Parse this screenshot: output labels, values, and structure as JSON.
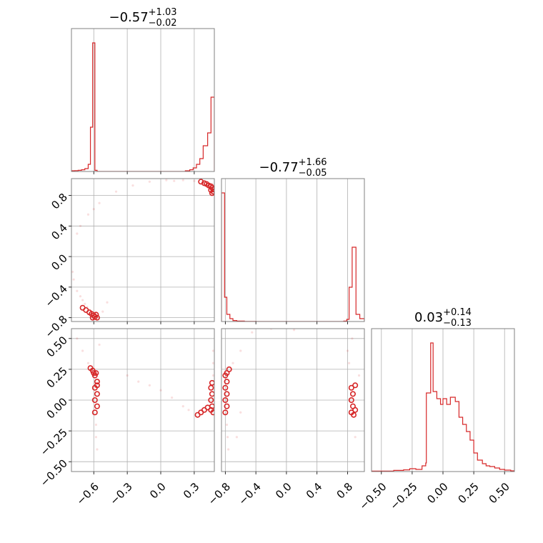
{
  "style": {
    "series_color": "#d62728",
    "grid_color": "#b0b0b0",
    "frame_color": "#808080"
  },
  "chart_data": {
    "type": "corner",
    "grid": true,
    "panels": [
      {
        "id": "hist-0",
        "type": "histogram",
        "row": 0,
        "col": 0,
        "title": {
          "median": "−0.57",
          "plus": "+1.03",
          "minus": "−0.02"
        },
        "xlim": [
          -0.8,
          0.48
        ],
        "x_gridlines": [
          -0.6,
          -0.3,
          0.0,
          0.3
        ],
        "ylim": [
          0,
          100
        ],
        "bins": [
          [
            -0.8,
            0.5
          ],
          [
            -0.77,
            0.6
          ],
          [
            -0.74,
            0.8
          ],
          [
            -0.71,
            1.2
          ],
          [
            -0.68,
            2.0
          ],
          [
            -0.65,
            5.0
          ],
          [
            -0.63,
            31.0
          ],
          [
            -0.61,
            90.0
          ],
          [
            -0.59,
            0.8
          ],
          [
            -0.57,
            0.0
          ],
          [
            0.22,
            0.5
          ],
          [
            0.26,
            1.2
          ],
          [
            0.29,
            2.5
          ],
          [
            0.32,
            5.0
          ],
          [
            0.35,
            9.0
          ],
          [
            0.38,
            18.0
          ],
          [
            0.42,
            27.0
          ],
          [
            0.45,
            52.0
          ],
          [
            0.48,
            52.0
          ]
        ]
      },
      {
        "id": "scatter-1-0",
        "type": "scatter_contour",
        "row": 1,
        "col": 0,
        "xlim": [
          -0.8,
          0.48
        ],
        "ylim": [
          -0.85,
          1.02
        ],
        "x_gridlines": [
          -0.6,
          -0.3,
          0.0,
          0.3
        ],
        "y_ticks": [
          {
            "value": -0.8,
            "label": "−0.8"
          },
          {
            "value": -0.4,
            "label": "−0.4"
          },
          {
            "value": 0.0,
            "label": "0.0"
          },
          {
            "value": 0.4,
            "label": "0.4"
          },
          {
            "value": 0.8,
            "label": "0.8"
          }
        ],
        "dense_points": [
          [
            0.36,
            0.98
          ],
          [
            0.39,
            0.96
          ],
          [
            0.41,
            0.95
          ],
          [
            0.43,
            0.93
          ],
          [
            0.45,
            0.92
          ],
          [
            0.46,
            0.9
          ],
          [
            0.47,
            0.88
          ],
          [
            0.45,
            0.87
          ],
          [
            0.47,
            0.85
          ],
          [
            0.46,
            0.83
          ],
          [
            -0.58,
            -0.76
          ],
          [
            -0.6,
            -0.77
          ],
          [
            -0.62,
            -0.75
          ],
          [
            -0.59,
            -0.79
          ],
          [
            -0.57,
            -0.8
          ],
          [
            -0.61,
            -0.8
          ],
          [
            -0.64,
            -0.73
          ],
          [
            -0.67,
            -0.7
          ],
          [
            -0.7,
            -0.67
          ]
        ],
        "sparse_points": [
          [
            -0.75,
            -0.45
          ],
          [
            -0.72,
            -0.52
          ],
          [
            -0.7,
            -0.57
          ],
          [
            -0.68,
            -0.62
          ],
          [
            -0.66,
            -0.66
          ],
          [
            -0.78,
            -0.3
          ],
          [
            -0.79,
            -0.2
          ],
          [
            -0.65,
            0.55
          ],
          [
            -0.6,
            0.62
          ],
          [
            -0.55,
            0.7
          ],
          [
            -0.4,
            0.85
          ],
          [
            -0.25,
            0.93
          ],
          [
            -0.1,
            0.98
          ],
          [
            0.05,
            1.0
          ],
          [
            0.2,
            1.0
          ],
          [
            -0.48,
            -0.6
          ],
          [
            -0.52,
            -0.72
          ],
          [
            -0.75,
            0.3
          ],
          [
            -0.72,
            0.4
          ],
          [
            0.12,
            0.99
          ],
          [
            0.3,
            0.99
          ]
        ]
      },
      {
        "id": "hist-1",
        "type": "histogram",
        "row": 1,
        "col": 1,
        "title": {
          "median": "−0.77",
          "plus": "+1.66",
          "minus": "−0.05"
        },
        "xlim": [
          -0.85,
          1.02
        ],
        "x_gridlines": [
          -0.8,
          -0.4,
          0.0,
          0.4,
          0.8
        ],
        "ylim": [
          0,
          100
        ],
        "bins": [
          [
            -0.85,
            90.0
          ],
          [
            -0.81,
            17.0
          ],
          [
            -0.78,
            5.0
          ],
          [
            -0.74,
            2.0
          ],
          [
            -0.7,
            0.7
          ],
          [
            -0.65,
            0.3
          ],
          [
            -0.55,
            0.1
          ],
          [
            -0.4,
            0.0
          ],
          [
            0.75,
            0.3
          ],
          [
            0.79,
            1.5
          ],
          [
            0.82,
            24.0
          ],
          [
            0.86,
            52.0
          ],
          [
            0.91,
            5.0
          ],
          [
            0.96,
            2.0
          ],
          [
            1.0,
            2.0
          ]
        ]
      },
      {
        "id": "scatter-2-0",
        "type": "scatter_contour",
        "row": 2,
        "col": 0,
        "xlim": [
          -0.8,
          0.48
        ],
        "ylim": [
          -0.58,
          0.58
        ],
        "x_ticks": [
          {
            "value": -0.6,
            "label": "−0.6"
          },
          {
            "value": -0.3,
            "label": "−0.3"
          },
          {
            "value": 0.0,
            "label": "0.0"
          },
          {
            "value": 0.3,
            "label": "0.3"
          }
        ],
        "y_ticks": [
          {
            "value": -0.5,
            "label": "−0.50"
          },
          {
            "value": -0.25,
            "label": "−0.25"
          },
          {
            "value": 0.0,
            "label": "0.00"
          },
          {
            "value": 0.25,
            "label": "0.25"
          },
          {
            "value": 0.5,
            "label": "0.50"
          }
        ],
        "dense_points": [
          [
            -0.59,
            0.2
          ],
          [
            -0.57,
            0.15
          ],
          [
            -0.59,
            0.1
          ],
          [
            -0.57,
            0.05
          ],
          [
            -0.59,
            0.0
          ],
          [
            -0.57,
            -0.05
          ],
          [
            -0.59,
            -0.1
          ],
          [
            -0.57,
            0.12
          ],
          [
            -0.58,
            0.22
          ],
          [
            -0.6,
            0.22
          ],
          [
            -0.61,
            0.24
          ],
          [
            -0.63,
            0.26
          ],
          [
            0.33,
            -0.12
          ],
          [
            0.36,
            -0.1
          ],
          [
            0.39,
            -0.08
          ],
          [
            0.42,
            -0.06
          ],
          [
            0.45,
            -0.08
          ],
          [
            0.46,
            -0.05
          ],
          [
            0.45,
            0.0
          ],
          [
            0.46,
            0.05
          ],
          [
            0.45,
            0.1
          ],
          [
            0.46,
            0.14
          ],
          [
            0.47,
            -0.1
          ]
        ],
        "sparse_points": [
          [
            -0.58,
            -0.2
          ],
          [
            -0.58,
            -0.3
          ],
          [
            -0.57,
            -0.4
          ],
          [
            -0.7,
            0.4
          ],
          [
            -0.65,
            0.3
          ],
          [
            -0.75,
            0.5
          ],
          [
            -0.55,
            0.45
          ],
          [
            -0.3,
            0.2
          ],
          [
            -0.2,
            0.15
          ],
          [
            -0.1,
            0.12
          ],
          [
            0.0,
            0.08
          ],
          [
            0.1,
            0.02
          ],
          [
            0.2,
            -0.05
          ],
          [
            0.25,
            -0.08
          ],
          [
            0.47,
            0.4
          ],
          [
            0.47,
            0.3
          ],
          [
            0.47,
            0.2
          ]
        ]
      },
      {
        "id": "scatter-2-1",
        "type": "scatter_contour",
        "row": 2,
        "col": 1,
        "xlim": [
          -0.85,
          1.02
        ],
        "ylim": [
          -0.58,
          0.58
        ],
        "x_ticks": [
          {
            "value": -0.8,
            "label": "−0.8"
          },
          {
            "value": -0.4,
            "label": "−0.4"
          },
          {
            "value": 0.0,
            "label": "0.0"
          },
          {
            "value": 0.4,
            "label": "0.4"
          },
          {
            "value": 0.8,
            "label": "0.8"
          }
        ],
        "dense_points": [
          [
            -0.8,
            0.2
          ],
          [
            -0.78,
            0.15
          ],
          [
            -0.8,
            0.1
          ],
          [
            -0.78,
            0.05
          ],
          [
            -0.8,
            0.0
          ],
          [
            -0.78,
            -0.05
          ],
          [
            -0.8,
            -0.1
          ],
          [
            -0.78,
            0.22
          ],
          [
            -0.75,
            0.25
          ],
          [
            0.85,
            0.1
          ],
          [
            0.87,
            0.05
          ],
          [
            0.85,
            0.0
          ],
          [
            0.87,
            -0.05
          ],
          [
            0.85,
            -0.1
          ],
          [
            0.88,
            -0.12
          ],
          [
            0.9,
            -0.08
          ],
          [
            0.9,
            0.12
          ]
        ],
        "sparse_points": [
          [
            -0.78,
            -0.2
          ],
          [
            -0.77,
            -0.3
          ],
          [
            -0.76,
            -0.4
          ],
          [
            -0.7,
            0.3
          ],
          [
            -0.6,
            0.4
          ],
          [
            -0.45,
            0.55
          ],
          [
            -0.2,
            0.58
          ],
          [
            0.1,
            0.57
          ],
          [
            0.82,
            0.3
          ],
          [
            0.8,
            0.4
          ],
          [
            0.86,
            0.5
          ],
          [
            0.9,
            -0.3
          ],
          [
            0.95,
            0.2
          ],
          [
            -0.6,
            -0.1
          ],
          [
            -0.65,
            -0.3
          ]
        ]
      },
      {
        "id": "hist-2",
        "type": "histogram",
        "row": 2,
        "col": 2,
        "title": {
          "median": "0.03",
          "plus": "+0.14",
          "minus": "−0.13"
        },
        "xlim": [
          -0.58,
          0.58
        ],
        "x_ticks": [
          {
            "value": -0.5,
            "label": "−0.50"
          },
          {
            "value": -0.25,
            "label": "−0.25"
          },
          {
            "value": 0.0,
            "label": "0.00"
          },
          {
            "value": 0.25,
            "label": "0.25"
          },
          {
            "value": 0.5,
            "label": "0.50"
          }
        ],
        "ylim": [
          0,
          100
        ],
        "bins": [
          [
            -0.58,
            0.3
          ],
          [
            -0.4,
            0.8
          ],
          [
            -0.32,
            1.2
          ],
          [
            -0.27,
            2.0
          ],
          [
            -0.22,
            1.5
          ],
          [
            -0.17,
            4.0
          ],
          [
            -0.14,
            6.0
          ],
          [
            -0.135,
            55.0
          ],
          [
            -0.1,
            90.0
          ],
          [
            -0.08,
            56.0
          ],
          [
            -0.05,
            51.0
          ],
          [
            -0.02,
            47.0
          ],
          [
            0.0,
            51.0
          ],
          [
            0.03,
            47.0
          ],
          [
            0.06,
            52.0
          ],
          [
            0.1,
            49.0
          ],
          [
            0.13,
            38.0
          ],
          [
            0.16,
            33.0
          ],
          [
            0.19,
            28.0
          ],
          [
            0.22,
            22.0
          ],
          [
            0.25,
            13.0
          ],
          [
            0.28,
            8.0
          ],
          [
            0.32,
            5.5
          ],
          [
            0.35,
            4.0
          ],
          [
            0.38,
            3.5
          ],
          [
            0.42,
            2.5
          ],
          [
            0.46,
            1.5
          ],
          [
            0.5,
            1.0
          ],
          [
            0.55,
            0.5
          ]
        ]
      }
    ]
  }
}
